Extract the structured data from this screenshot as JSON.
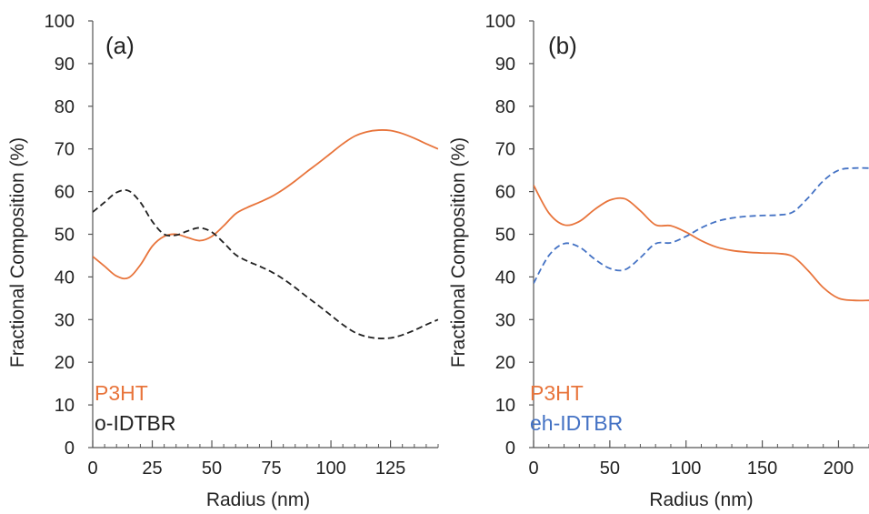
{
  "chart_data": [
    {
      "type": "line",
      "panel_label": "(a)",
      "xlabel": "Radius (nm)",
      "ylabel": "Fractional Composition (%)",
      "xlim": [
        0,
        145
      ],
      "ylim": [
        0,
        100
      ],
      "xticks": [
        0,
        25,
        50,
        75,
        100,
        125
      ],
      "xtick_labels": [
        "0",
        "25",
        "50",
        "75",
        "100",
        "125"
      ],
      "x_minor_step": 5,
      "yticks": [
        0,
        10,
        20,
        30,
        40,
        50,
        60,
        70,
        80,
        90,
        100
      ],
      "ytick_labels": [
        "0",
        "10",
        "20",
        "30",
        "40",
        "50",
        "60",
        "70",
        "80",
        "90",
        "100"
      ],
      "grid": false,
      "legend_position": "bottom-left",
      "series": [
        {
          "name": "P3HT",
          "color": "#e8743b",
          "dash": "solid",
          "x": [
            0,
            5,
            10,
            15,
            20,
            25,
            30,
            35,
            40,
            45,
            50,
            55,
            60,
            65,
            70,
            75,
            80,
            85,
            90,
            95,
            100,
            105,
            110,
            115,
            120,
            125,
            130,
            135,
            140,
            145
          ],
          "y": [
            44.8,
            42.5,
            40.2,
            39.8,
            42.8,
            47.2,
            49.5,
            50.0,
            49.2,
            48.5,
            49.5,
            52.0,
            54.8,
            56.3,
            57.5,
            58.8,
            60.5,
            62.5,
            64.7,
            66.8,
            69.0,
            71.2,
            73.0,
            74.0,
            74.4,
            74.3,
            73.6,
            72.5,
            71.2,
            70.0
          ]
        },
        {
          "name": "o-IDTBR",
          "color": "#222222",
          "dash": "dashed",
          "x": [
            0,
            5,
            10,
            15,
            20,
            25,
            30,
            35,
            40,
            45,
            50,
            55,
            60,
            65,
            70,
            75,
            80,
            85,
            90,
            95,
            100,
            105,
            110,
            115,
            120,
            125,
            130,
            135,
            140,
            145
          ],
          "y": [
            55.2,
            57.5,
            59.8,
            60.2,
            57.5,
            53.0,
            50.0,
            49.8,
            50.8,
            51.5,
            50.5,
            48.0,
            45.2,
            43.7,
            42.5,
            41.2,
            39.5,
            37.5,
            35.3,
            33.2,
            31.0,
            28.8,
            27.0,
            26.0,
            25.6,
            25.7,
            26.4,
            27.5,
            28.8,
            30.0
          ]
        }
      ]
    },
    {
      "type": "line",
      "panel_label": "(b)",
      "xlabel": "Radius (nm)",
      "ylabel": "Fractional Composition (%)",
      "xlim": [
        0,
        220
      ],
      "ylim": [
        0,
        100
      ],
      "xticks": [
        0,
        50,
        100,
        150,
        200
      ],
      "xtick_labels": [
        "0",
        "50",
        "100",
        "150",
        "200"
      ],
      "x_minor_step": 10,
      "yticks": [
        0,
        10,
        20,
        30,
        40,
        50,
        60,
        70,
        80,
        90,
        100
      ],
      "ytick_labels": [
        "0",
        "10",
        "20",
        "30",
        "40",
        "50",
        "60",
        "70",
        "80",
        "90",
        "100"
      ],
      "grid": false,
      "legend_position": "bottom-left",
      "series": [
        {
          "name": "P3HT",
          "color": "#e8743b",
          "dash": "solid",
          "x": [
            0,
            10,
            20,
            30,
            40,
            50,
            60,
            70,
            80,
            90,
            100,
            110,
            120,
            130,
            140,
            150,
            160,
            170,
            180,
            190,
            200,
            210,
            220
          ],
          "y": [
            61.5,
            55.0,
            52.2,
            53.0,
            55.8,
            58.0,
            58.3,
            55.5,
            52.2,
            52.0,
            50.5,
            48.5,
            47.0,
            46.2,
            45.8,
            45.6,
            45.5,
            44.8,
            41.5,
            37.5,
            35.0,
            34.5,
            34.5
          ]
        },
        {
          "name": "eh-IDTBR",
          "color": "#4472c4",
          "dash": "dashed",
          "x": [
            0,
            10,
            20,
            30,
            40,
            50,
            60,
            70,
            80,
            90,
            100,
            110,
            120,
            130,
            140,
            150,
            160,
            170,
            180,
            190,
            200,
            210,
            220
          ],
          "y": [
            38.5,
            45.0,
            47.8,
            47.0,
            44.2,
            42.0,
            41.7,
            44.5,
            47.8,
            48.0,
            49.5,
            51.5,
            53.0,
            53.8,
            54.2,
            54.4,
            54.5,
            55.2,
            58.5,
            62.5,
            65.0,
            65.5,
            65.5
          ]
        }
      ]
    }
  ]
}
